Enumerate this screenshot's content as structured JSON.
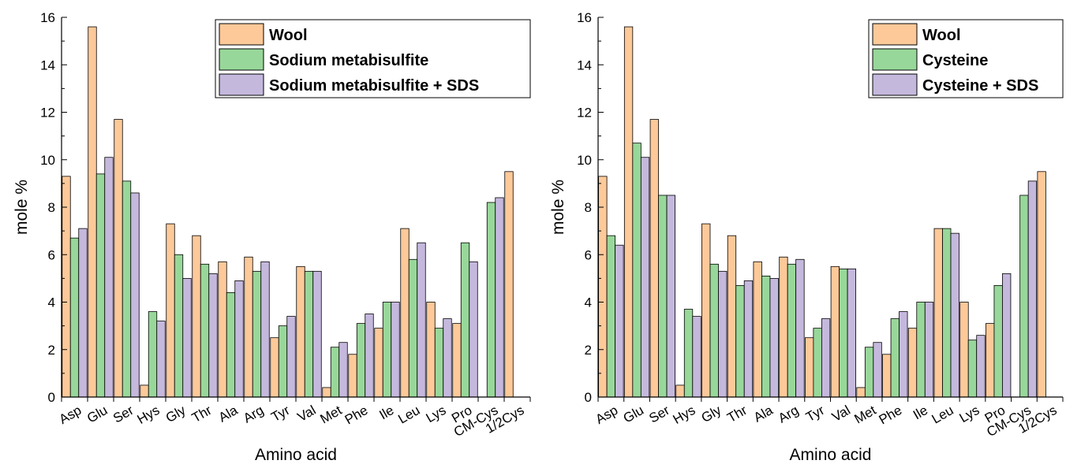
{
  "chart_data": [
    {
      "type": "bar",
      "xlabel": "Amino acid",
      "ylabel": "mole %",
      "ylim": [
        0,
        16
      ],
      "yticks": [
        0,
        2,
        4,
        6,
        8,
        10,
        12,
        14,
        16
      ],
      "grid": false,
      "legend_position": "top-right",
      "categories": [
        "Asp",
        "Glu",
        "Ser",
        "Hys",
        "Gly",
        "Thr",
        "Ala",
        "Arg",
        "Tyr",
        "Val",
        "Met",
        "Phe",
        "Ile",
        "Leu",
        "Lys",
        "Pro",
        "CM-Cys",
        "1/2Cys"
      ],
      "series": [
        {
          "name": "Wool",
          "color": "#fdc999",
          "values": [
            9.3,
            15.6,
            11.7,
            0.5,
            7.3,
            6.8,
            5.7,
            5.9,
            2.5,
            5.5,
            0.4,
            1.8,
            2.9,
            7.1,
            4.0,
            3.1,
            null,
            9.5
          ]
        },
        {
          "name": "Sodium metabisulfite",
          "color": "#98d79a",
          "values": [
            6.7,
            9.4,
            9.1,
            3.6,
            6.0,
            5.6,
            4.4,
            5.3,
            3.0,
            5.3,
            2.1,
            3.1,
            4.0,
            5.8,
            2.9,
            6.5,
            8.2,
            null
          ]
        },
        {
          "name": "Sodium metabisulfite + SDS",
          "color": "#c5b8dd",
          "values": [
            7.1,
            10.1,
            8.6,
            3.2,
            5.0,
            5.2,
            4.9,
            5.7,
            3.4,
            5.3,
            2.3,
            3.5,
            4.0,
            6.5,
            3.3,
            5.7,
            8.4,
            null
          ]
        }
      ]
    },
    {
      "type": "bar",
      "xlabel": "Amino acid",
      "ylabel": "mole %",
      "ylim": [
        0,
        16
      ],
      "yticks": [
        0,
        2,
        4,
        6,
        8,
        10,
        12,
        14,
        16
      ],
      "grid": false,
      "legend_position": "top-right",
      "categories": [
        "Asp",
        "Glu",
        "Ser",
        "Hys",
        "Gly",
        "Thr",
        "Ala",
        "Arg",
        "Tyr",
        "Val",
        "Met",
        "Phe",
        "Ile",
        "Leu",
        "Lys",
        "Pro",
        "CM-Cys",
        "1/2Cys"
      ],
      "series": [
        {
          "name": "Wool",
          "color": "#fdc999",
          "values": [
            9.3,
            15.6,
            11.7,
            0.5,
            7.3,
            6.8,
            5.7,
            5.9,
            2.5,
            5.5,
            0.4,
            1.8,
            2.9,
            7.1,
            4.0,
            3.1,
            null,
            9.5
          ]
        },
        {
          "name": "Cysteine",
          "color": "#98d79a",
          "values": [
            6.8,
            10.7,
            8.5,
            3.7,
            5.6,
            4.7,
            5.1,
            5.6,
            2.9,
            5.4,
            2.1,
            3.3,
            4.0,
            7.1,
            2.4,
            4.7,
            8.5,
            null
          ]
        },
        {
          "name": "Cysteine + SDS",
          "color": "#c5b8dd",
          "values": [
            6.4,
            10.1,
            8.5,
            3.4,
            5.3,
            4.9,
            5.0,
            5.8,
            3.3,
            5.4,
            2.3,
            3.6,
            4.0,
            6.9,
            2.6,
            5.2,
            9.1,
            null
          ]
        }
      ]
    }
  ]
}
